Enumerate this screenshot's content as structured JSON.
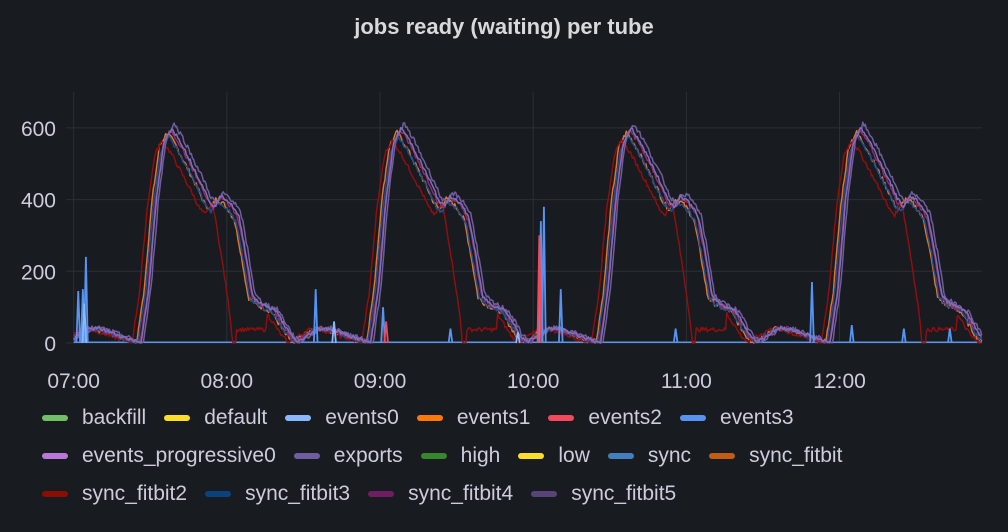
{
  "panel": {
    "title": "jobs ready (waiting) per tube"
  },
  "chart_data": {
    "type": "line",
    "title": "jobs ready (waiting) per tube",
    "xlabel": "",
    "ylabel": "",
    "x_range_hours": [
      6.95,
      12.93
    ],
    "ylim": [
      0,
      700
    ],
    "yticks": [
      0,
      200,
      400,
      600
    ],
    "ytick_labels": [
      "0",
      "200",
      "400",
      "600"
    ],
    "xticks": [
      7,
      8,
      9,
      10,
      11,
      12
    ],
    "xtick_labels": [
      "07:00",
      "08:00",
      "09:00",
      "10:00",
      "11:00",
      "12:00"
    ],
    "grid": true,
    "legend_position": "bottom",
    "cycle_offsets_hours": [
      0,
      1.5,
      3.0,
      4.5
    ],
    "big_series_profile": {
      "x": [
        6.95,
        7.08,
        7.15,
        7.22,
        7.35,
        7.42,
        7.47,
        7.52,
        7.57,
        7.62,
        7.68,
        7.75,
        7.82,
        7.86,
        7.9,
        7.94,
        7.98,
        8.02,
        8.06,
        8.1,
        8.15,
        8.2,
        8.3,
        8.4,
        8.45
      ],
      "y": [
        5,
        40,
        40,
        30,
        10,
        0,
        150,
        400,
        560,
        600,
        560,
        500,
        440,
        400,
        380,
        410,
        400,
        380,
        350,
        260,
        130,
        110,
        90,
        20,
        0
      ]
    },
    "series": [
      {
        "name": "sync_fitbit",
        "color": "#e0752d",
        "offset_min": -0.01,
        "scale": 0.98,
        "noise": 14
      },
      {
        "name": "sync_fitbit2",
        "color": "#8f0f0f",
        "offset_min": -0.04,
        "scale": 0.94,
        "noise": 12,
        "early_drop": true
      },
      {
        "name": "sync_fitbit3",
        "color": "#1f4c8a",
        "offset_min": 0.0,
        "scale": 0.96,
        "noise": 12
      },
      {
        "name": "sync_fitbit4",
        "color": "#8c2b6f",
        "offset_min": 0.015,
        "scale": 0.99,
        "noise": 14
      },
      {
        "name": "sync_fitbit5",
        "color": "#705da0",
        "offset_min": 0.035,
        "scale": 1.02,
        "noise": 14
      },
      {
        "name": "exports",
        "color": "#806eb7",
        "offset_min": 0.02,
        "scale": 1.0,
        "noise": 10
      },
      {
        "name": "events1",
        "color": "#ff780a",
        "offset_min": 0.0,
        "scale": 0.0,
        "noise": 0
      }
    ],
    "spikes": [
      {
        "name": "events3",
        "color": "#5794f2",
        "x": [
          7.03,
          7.06,
          7.08,
          8.58,
          9.02,
          9.46,
          10.05,
          10.07,
          10.18,
          10.93,
          11.82,
          12.08,
          12.42,
          12.72
        ],
        "y": [
          145,
          150,
          240,
          150,
          100,
          40,
          340,
          380,
          150,
          40,
          170,
          50,
          40,
          40
        ]
      },
      {
        "name": "events2",
        "color": "#f2495c",
        "x": [
          9.04,
          10.04
        ],
        "y": [
          60,
          300
        ]
      },
      {
        "name": "events0",
        "color": "#8ab8ff",
        "x": [
          7.07,
          8.7,
          9.9
        ],
        "y": [
          110,
          60,
          30
        ]
      }
    ],
    "legend": [
      {
        "label": "backfill",
        "color": "#73bf69"
      },
      {
        "label": "default",
        "color": "#fade2a"
      },
      {
        "label": "events0",
        "color": "#8ab8ff"
      },
      {
        "label": "events1",
        "color": "#ff780a"
      },
      {
        "label": "events2",
        "color": "#f2495c"
      },
      {
        "label": "events3",
        "color": "#5794f2"
      },
      {
        "label": "events_progressive0",
        "color": "#b877d9"
      },
      {
        "label": "exports",
        "color": "#705da0"
      },
      {
        "label": "high",
        "color": "#37872d"
      },
      {
        "label": "low",
        "color": "#fade2a"
      },
      {
        "label": "sync",
        "color": "#447ebc"
      },
      {
        "label": "sync_fitbit",
        "color": "#c15c17"
      },
      {
        "label": "sync_fitbit2",
        "color": "#890f02"
      },
      {
        "label": "sync_fitbit3",
        "color": "#0a437c"
      },
      {
        "label": "sync_fitbit4",
        "color": "#6d1f62"
      },
      {
        "label": "sync_fitbit5",
        "color": "#584477"
      }
    ]
  }
}
